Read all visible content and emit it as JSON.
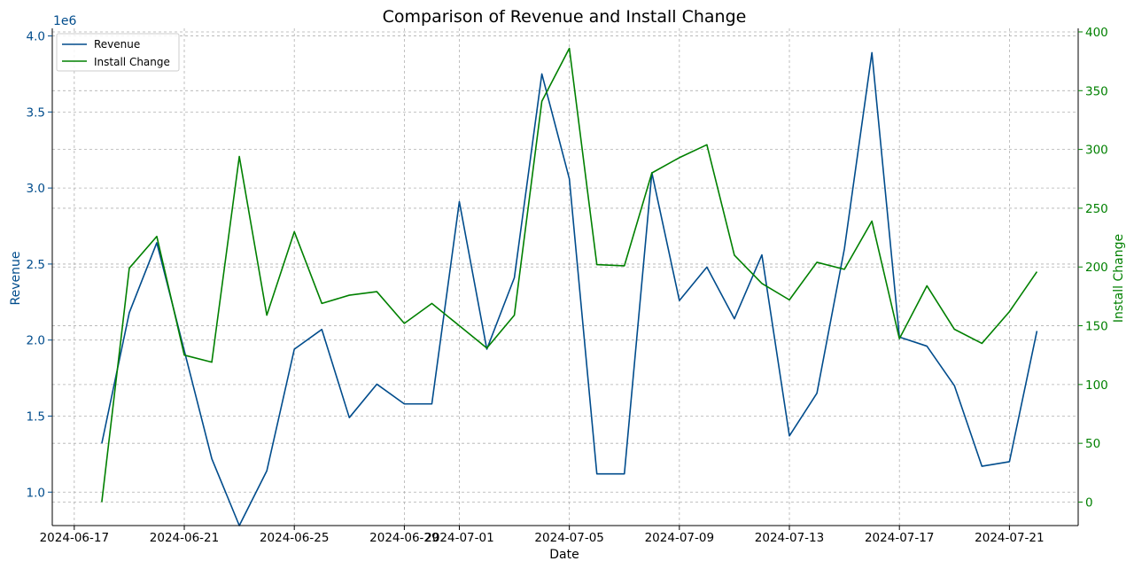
{
  "chart_data": {
    "type": "line",
    "title": "Comparison of Revenue and Install Change",
    "xlabel": "Date",
    "ylabel_left": "Revenue",
    "ylabel_right": "Install Change",
    "left_offset_label": "1e6",
    "colors": {
      "revenue": "#004c8c",
      "install": "#008000"
    },
    "xlim_days": [
      -1.8,
      35.5
    ],
    "ylim_left": [
      0.78,
      4.05
    ],
    "ylim_right": [
      -20,
      403
    ],
    "x_ticks": [
      {
        "day": -1,
        "label": "2024-06-17"
      },
      {
        "day": 3,
        "label": "2024-06-21"
      },
      {
        "day": 7,
        "label": "2024-06-25"
      },
      {
        "day": 11,
        "label": "2024-06-29"
      },
      {
        "day": 13,
        "label": "2024-07-01"
      },
      {
        "day": 17,
        "label": "2024-07-05"
      },
      {
        "day": 21,
        "label": "2024-07-09"
      },
      {
        "day": 25,
        "label": "2024-07-13"
      },
      {
        "day": 29,
        "label": "2024-07-17"
      },
      {
        "day": 33,
        "label": "2024-07-21"
      }
    ],
    "y_left_ticks": [
      {
        "value": 1.0,
        "label": "1.0"
      },
      {
        "value": 1.5,
        "label": "1.5"
      },
      {
        "value": 2.0,
        "label": "2.0"
      },
      {
        "value": 2.5,
        "label": "2.5"
      },
      {
        "value": 3.0,
        "label": "3.0"
      },
      {
        "value": 3.5,
        "label": "3.5"
      },
      {
        "value": 4.0,
        "label": "4.0"
      }
    ],
    "y_right_ticks": [
      {
        "value": 0,
        "label": "0"
      },
      {
        "value": 50,
        "label": "50"
      },
      {
        "value": 100,
        "label": "100"
      },
      {
        "value": 150,
        "label": "150"
      },
      {
        "value": 200,
        "label": "200"
      },
      {
        "value": 250,
        "label": "250"
      },
      {
        "value": 300,
        "label": "300"
      },
      {
        "value": 350,
        "label": "350"
      },
      {
        "value": 400,
        "label": "400"
      }
    ],
    "legend": {
      "position": "top-left",
      "entries": [
        "Revenue",
        "Install Change"
      ]
    },
    "series": [
      {
        "name": "Revenue",
        "axis": "left",
        "x_days": [
          0,
          1,
          2,
          3,
          4,
          5,
          6,
          7,
          8,
          9,
          10,
          11,
          12,
          13,
          14,
          15,
          16,
          17,
          18,
          19,
          20,
          21,
          22,
          23,
          24,
          25,
          26,
          27,
          28,
          29,
          30,
          31,
          32,
          33,
          34
        ],
        "values": [
          1.32,
          2.18,
          2.64,
          1.93,
          1.22,
          0.78,
          1.14,
          1.94,
          2.07,
          1.49,
          1.71,
          1.58,
          1.58,
          2.91,
          1.94,
          2.41,
          3.75,
          3.06,
          1.12,
          1.12,
          3.1,
          2.26,
          2.48,
          2.14,
          2.56,
          1.37,
          1.65,
          2.6,
          3.89,
          2.02,
          1.96,
          1.7,
          1.17,
          1.2,
          2.06
        ]
      },
      {
        "name": "Install Change",
        "axis": "right",
        "x_days": [
          0,
          1,
          2,
          3,
          4,
          5,
          6,
          7,
          8,
          9,
          10,
          11,
          12,
          13,
          14,
          15,
          16,
          17,
          18,
          19,
          20,
          21,
          22,
          23,
          24,
          25,
          26,
          27,
          28,
          29,
          30,
          31,
          32,
          33,
          34
        ],
        "values": [
          0,
          199,
          226,
          125,
          119,
          294,
          159,
          230,
          169,
          176,
          179,
          152,
          169,
          150,
          131,
          159,
          341,
          386,
          202,
          201,
          280,
          293,
          304,
          210,
          186,
          172,
          204,
          198,
          239,
          139,
          184,
          147,
          135,
          162,
          196
        ]
      }
    ]
  }
}
